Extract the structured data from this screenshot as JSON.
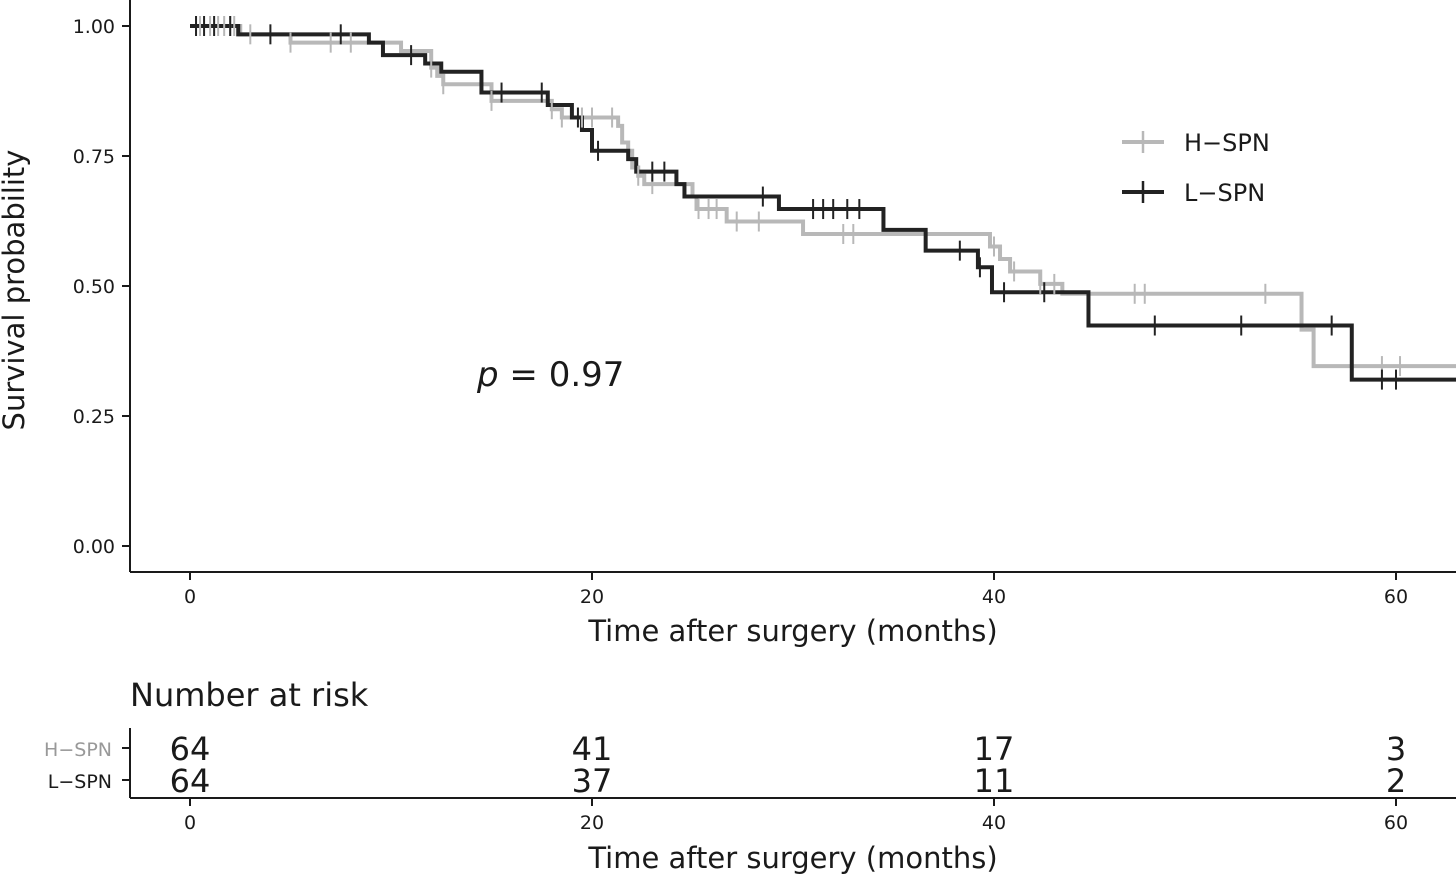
{
  "chart_data": [
    {
      "type": "line",
      "subtype": "kaplan-meier",
      "ylabel": "Survival probability",
      "xlabel": "Time after surgery (months)",
      "xlim": [
        -3,
        63
      ],
      "ylim": [
        0,
        1
      ],
      "x_ticks": [
        0,
        20,
        40,
        60
      ],
      "y_ticks": [
        0,
        0.25,
        0.5,
        0.75,
        1
      ],
      "y_tick_labels": [
        "0.00",
        "0.25",
        "0.50",
        "0.75",
        "1.00"
      ],
      "annotation": {
        "italic": "p",
        "rest": " = 0.97",
        "x": 14.5,
        "y": 0.33
      },
      "legend": {
        "position": "right",
        "entries": [
          "H−SPN",
          "L−SPN"
        ]
      },
      "series": [
        {
          "name": "H−SPN",
          "color": "#b8b8b8",
          "steps": [
            [
              0,
              1
            ],
            [
              2.5,
              0.984
            ],
            [
              5,
              0.968
            ],
            [
              10.5,
              0.952
            ],
            [
              12,
              0.92
            ],
            [
              12.3,
              0.904
            ],
            [
              12.6,
              0.888
            ],
            [
              15,
              0.856
            ],
            [
              18,
              0.84
            ],
            [
              18.5,
              0.824
            ],
            [
              21.3,
              0.808
            ],
            [
              21.5,
              0.776
            ],
            [
              21.8,
              0.76
            ],
            [
              22,
              0.728
            ],
            [
              22.3,
              0.712
            ],
            [
              22.6,
              0.696
            ],
            [
              25,
              0.672
            ],
            [
              25.2,
              0.648
            ],
            [
              26.7,
              0.624
            ],
            [
              30.5,
              0.6
            ],
            [
              39.8,
              0.576
            ],
            [
              40.3,
              0.552
            ],
            [
              40.8,
              0.528
            ],
            [
              42.3,
              0.504
            ],
            [
              43.4,
              0.485
            ],
            [
              55.3,
              0.416
            ],
            [
              55.9,
              0.346
            ]
          ],
          "end": 63,
          "censor_times": [
            0.5,
            1,
            1.4,
            1.7,
            2,
            2.2,
            3,
            5,
            7,
            8,
            12,
            12.6,
            15,
            18,
            18.5,
            19.5,
            20,
            21,
            22.3,
            23,
            25.3,
            25.8,
            26.2,
            27.2,
            28.3,
            32.5,
            33,
            40,
            41,
            42.3,
            43,
            47,
            47.5,
            53.5,
            59.3,
            60.2
          ]
        },
        {
          "name": "L−SPN",
          "color": "#222222",
          "steps": [
            [
              0,
              1
            ],
            [
              2.4,
              0.984
            ],
            [
              8.9,
              0.968
            ],
            [
              9.6,
              0.944
            ],
            [
              11.7,
              0.928
            ],
            [
              12.5,
              0.912
            ],
            [
              14.5,
              0.872
            ],
            [
              17.8,
              0.848
            ],
            [
              19,
              0.824
            ],
            [
              19.5,
              0.8
            ],
            [
              20,
              0.76
            ],
            [
              21.8,
              0.744
            ],
            [
              22.2,
              0.72
            ],
            [
              24.2,
              0.696
            ],
            [
              24.6,
              0.672
            ],
            [
              29.3,
              0.648
            ],
            [
              34.5,
              0.608
            ],
            [
              36.6,
              0.568
            ],
            [
              39.2,
              0.536
            ],
            [
              39.9,
              0.488
            ],
            [
              44.7,
              0.424
            ],
            [
              57.8,
              0.32
            ]
          ],
          "end": 63,
          "censor_times": [
            0.3,
            0.7,
            1.2,
            2,
            4,
            7.5,
            11,
            15.5,
            17.5,
            19.3,
            20.3,
            23,
            23.6,
            28.5,
            31,
            31.5,
            32,
            32.7,
            33.3,
            38.3,
            39.3,
            40.5,
            42.5,
            48,
            52.3,
            56.8,
            59.3,
            60
          ]
        }
      ]
    },
    {
      "type": "table",
      "title": "Number at risk",
      "xlabel": "Time after surgery (months)",
      "x_ticks": [
        0,
        20,
        40,
        60
      ],
      "rows": [
        {
          "label": "H−SPN",
          "color": "#999999",
          "values": [
            64,
            41,
            17,
            3
          ]
        },
        {
          "label": "L−SPN",
          "color": "#1a1a1a",
          "values": [
            64,
            37,
            11,
            2
          ]
        }
      ]
    }
  ]
}
